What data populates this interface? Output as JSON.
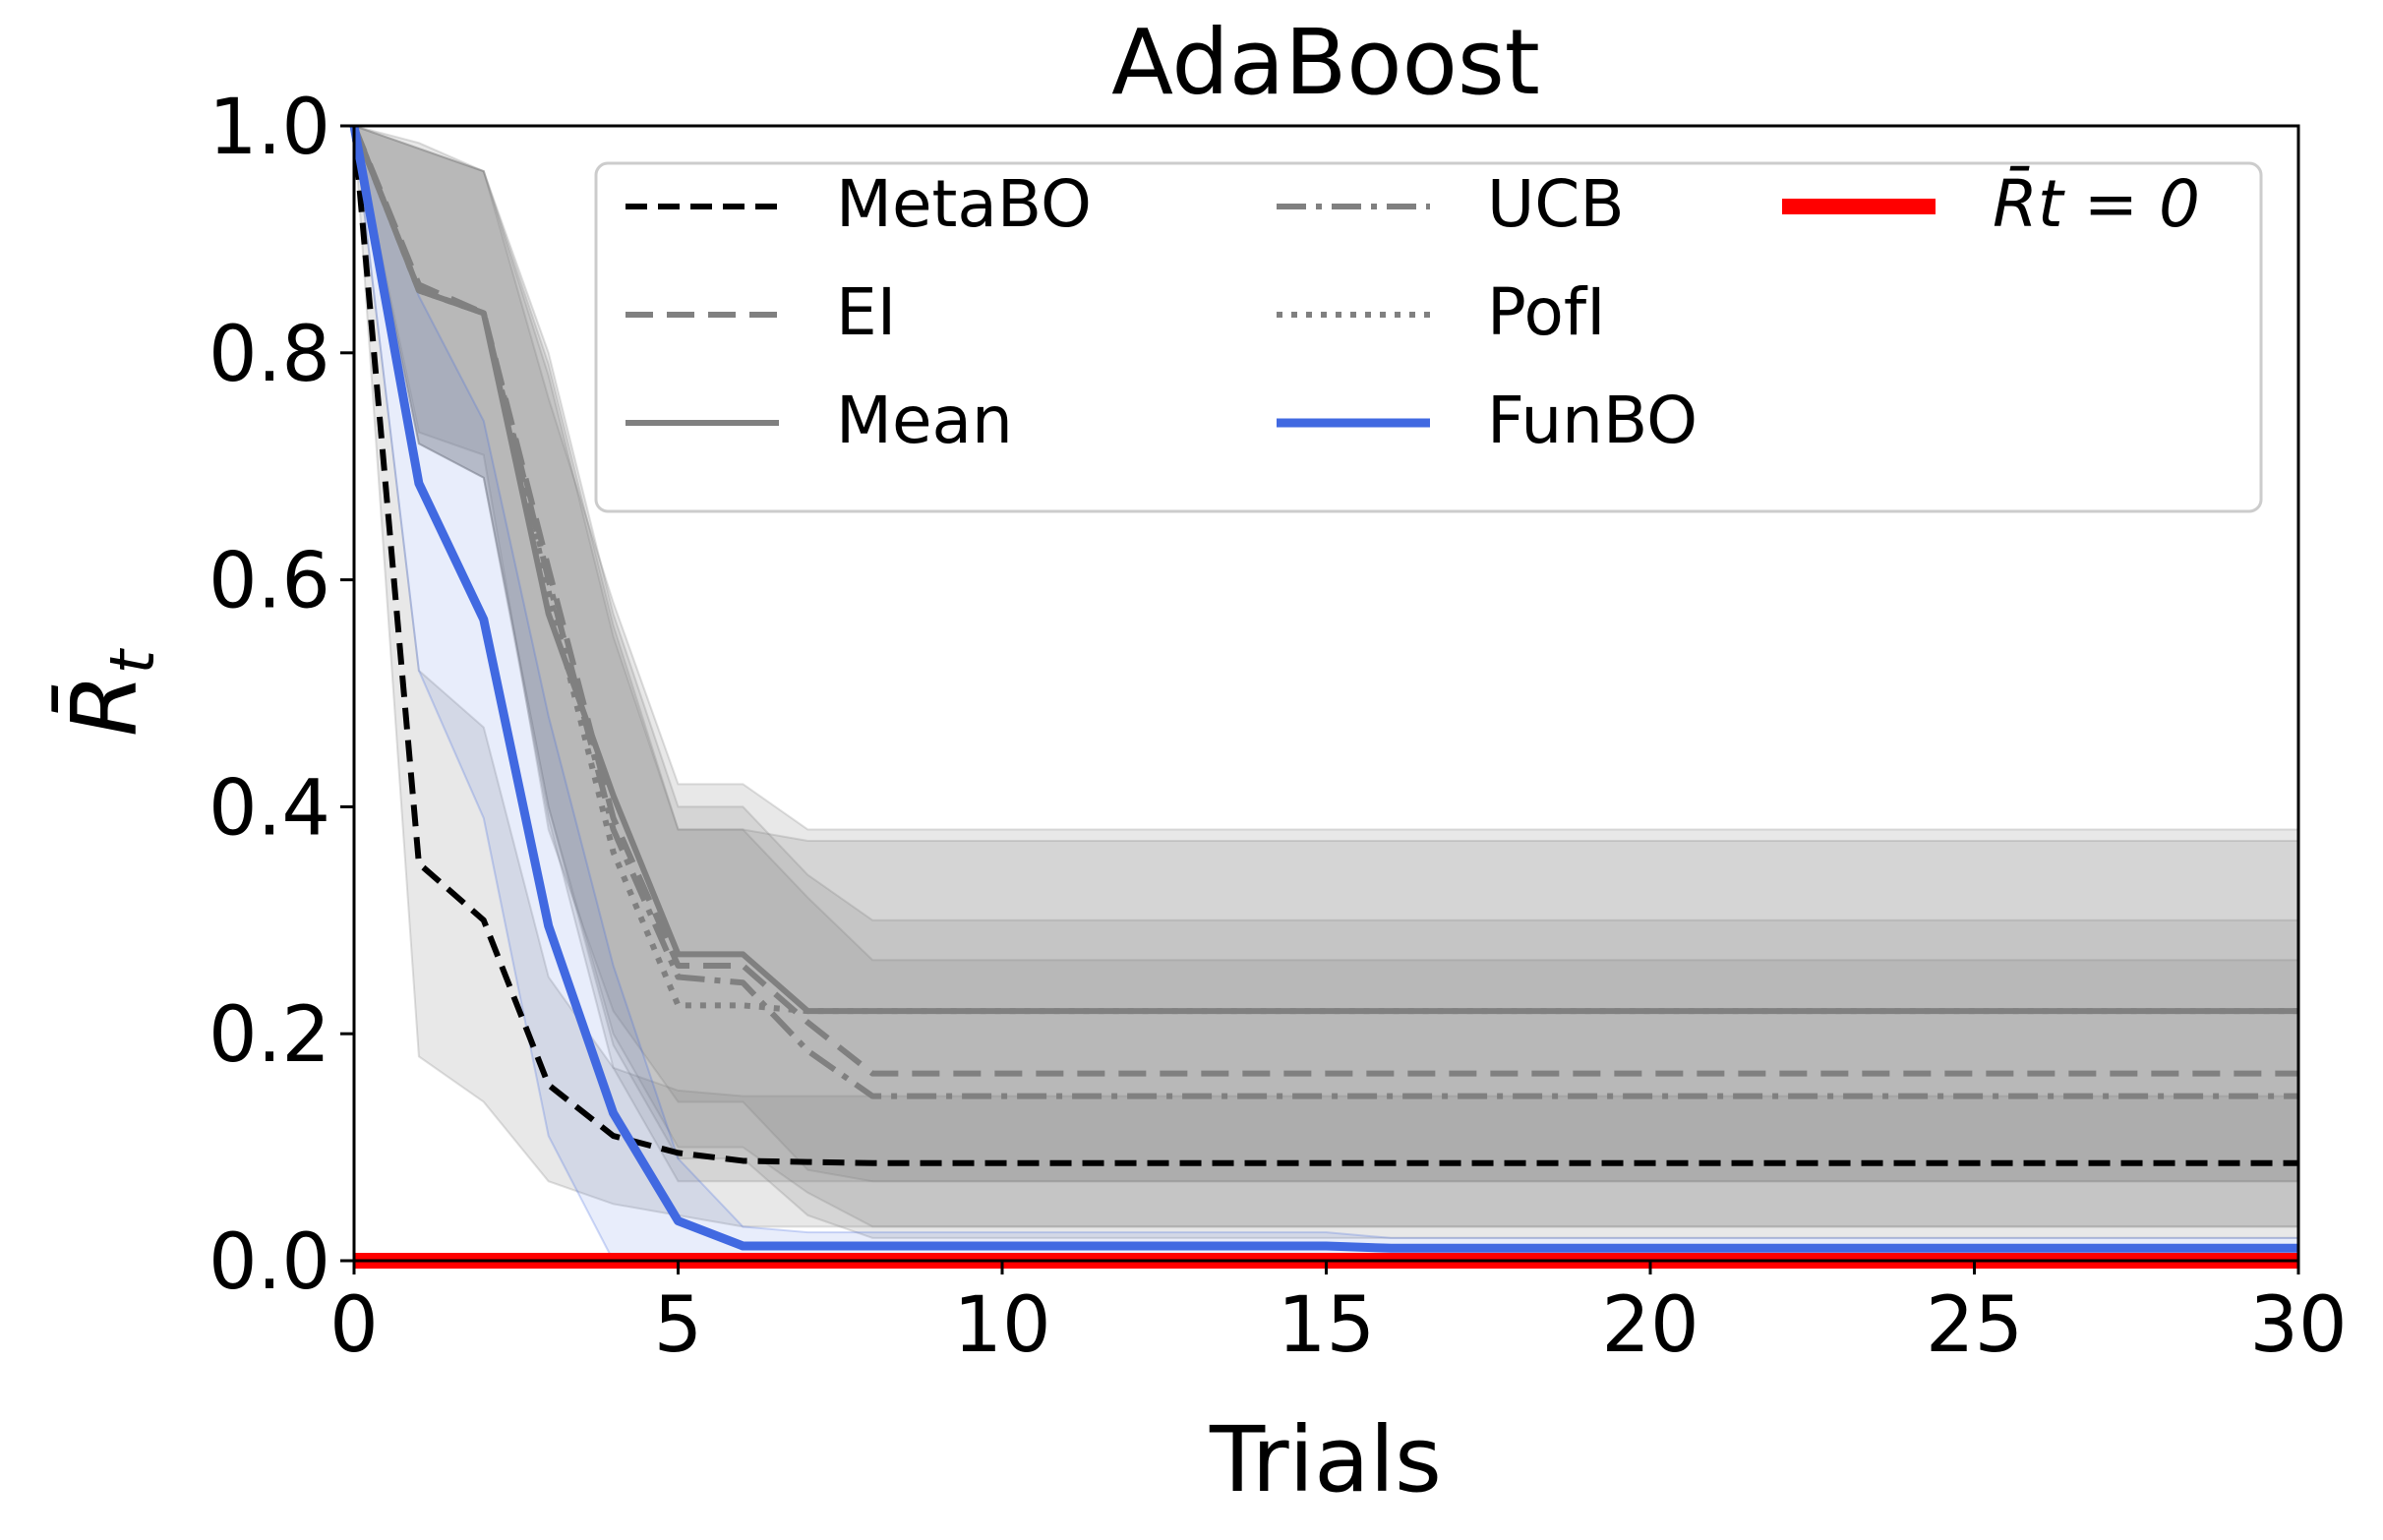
{
  "chart_data": {
    "type": "line",
    "title": "AdaBoost",
    "xlabel": "Trials",
    "ylabel": "R̄",
    "ylabel_subscript": "t",
    "xlim": [
      0,
      30
    ],
    "ylim": [
      0,
      1.0
    ],
    "xticks": [
      "0",
      "5",
      "10",
      "15",
      "20",
      "25",
      "30"
    ],
    "yticks": [
      "0.0",
      "0.2",
      "0.4",
      "0.6",
      "0.8",
      "1.0"
    ],
    "colors": {
      "metabo": "#000000",
      "baseline": "#808080",
      "funbo": "#4169e1",
      "zero": "#ff0000",
      "band_gray": "#7f7f7f",
      "band_blue": "#4169e1"
    },
    "series": [
      {
        "name": "MetaBO",
        "style": "dashed",
        "color": "#000000",
        "x": [
          0,
          1,
          2,
          3,
          4,
          5,
          6,
          7,
          8,
          30
        ],
        "values": [
          1.0,
          0.35,
          0.3,
          0.155,
          0.11,
          0.095,
          0.088,
          0.087,
          0.086,
          0.086
        ],
        "lower": [
          1.0,
          0.18,
          0.14,
          0.07,
          0.05,
          0.04,
          0.03,
          0.03,
          0.03,
          0.03
        ],
        "upper": [
          1.0,
          0.52,
          0.47,
          0.25,
          0.17,
          0.15,
          0.145,
          0.145,
          0.145,
          0.145
        ]
      },
      {
        "name": "EI",
        "style": "longdash",
        "color": "#808080",
        "x": [
          0,
          1,
          2,
          3,
          4,
          5,
          6,
          7,
          8,
          30
        ],
        "values": [
          1.0,
          0.86,
          0.835,
          0.61,
          0.39,
          0.26,
          0.26,
          0.21,
          0.165,
          0.165
        ],
        "lower": [
          1.0,
          0.72,
          0.69,
          0.4,
          0.2,
          0.1,
          0.1,
          0.06,
          0.03,
          0.03
        ],
        "upper": [
          1.0,
          0.98,
          0.96,
          0.8,
          0.57,
          0.4,
          0.4,
          0.34,
          0.3,
          0.3
        ]
      },
      {
        "name": "Mean",
        "style": "solid",
        "color": "#808080",
        "x": [
          0,
          1,
          2,
          3,
          4,
          5,
          6,
          7,
          8,
          30
        ],
        "values": [
          1.0,
          0.855,
          0.835,
          0.57,
          0.41,
          0.27,
          0.27,
          0.22,
          0.22,
          0.22
        ],
        "lower": [
          1.0,
          0.73,
          0.71,
          0.38,
          0.22,
          0.14,
          0.14,
          0.08,
          0.07,
          0.07
        ],
        "upper": [
          1.0,
          0.985,
          0.96,
          0.76,
          0.58,
          0.42,
          0.42,
          0.38,
          0.38,
          0.38
        ]
      },
      {
        "name": "UCB",
        "style": "dashdot",
        "color": "#808080",
        "x": [
          0,
          1,
          2,
          3,
          4,
          5,
          6,
          7,
          8,
          30
        ],
        "values": [
          1.0,
          0.855,
          0.835,
          0.6,
          0.38,
          0.25,
          0.245,
          0.185,
          0.145,
          0.145
        ],
        "lower": [
          1.0,
          0.72,
          0.69,
          0.4,
          0.19,
          0.09,
          0.09,
          0.04,
          0.02,
          0.02
        ],
        "upper": [
          1.0,
          0.98,
          0.96,
          0.79,
          0.56,
          0.38,
          0.38,
          0.32,
          0.265,
          0.265
        ]
      },
      {
        "name": "PofI",
        "style": "dotted",
        "color": "#808080",
        "x": [
          0,
          1,
          2,
          3,
          4,
          5,
          6,
          7,
          8,
          30
        ],
        "values": [
          1.0,
          0.855,
          0.835,
          0.59,
          0.36,
          0.225,
          0.225,
          0.22,
          0.22,
          0.22
        ],
        "lower": [
          1.0,
          0.72,
          0.69,
          0.39,
          0.17,
          0.07,
          0.07,
          0.07,
          0.07,
          0.07
        ],
        "upper": [
          1.0,
          0.98,
          0.96,
          0.78,
          0.55,
          0.38,
          0.38,
          0.37,
          0.37,
          0.37
        ]
      },
      {
        "name": "FunBO",
        "style": "solid",
        "color": "#4169e1",
        "x": [
          0,
          1,
          2,
          3,
          4,
          5,
          6,
          7,
          8,
          15,
          16,
          21,
          30
        ],
        "values": [
          1.0,
          0.685,
          0.565,
          0.295,
          0.13,
          0.035,
          0.013,
          0.013,
          0.013,
          0.013,
          0.011,
          0.011,
          0.011
        ],
        "lower": [
          1.0,
          0.52,
          0.39,
          0.11,
          0.0,
          0.0,
          0.0,
          0.0,
          0.0,
          0.0,
          0.0,
          0.0,
          0.0
        ],
        "upper": [
          1.0,
          0.85,
          0.74,
          0.48,
          0.26,
          0.09,
          0.03,
          0.025,
          0.025,
          0.025,
          0.02,
          0.02,
          0.02
        ]
      },
      {
        "name": "R̄t = 0",
        "style": "thick",
        "color": "#ff0000",
        "x": [
          0,
          30
        ],
        "values": [
          0,
          0
        ]
      }
    ],
    "legend": {
      "placement": "top-right",
      "columns": 3,
      "entries": [
        "MetaBO",
        "EI",
        "Mean",
        "UCB",
        "PofI",
        "FunBO",
        "R̄t = 0"
      ]
    }
  }
}
